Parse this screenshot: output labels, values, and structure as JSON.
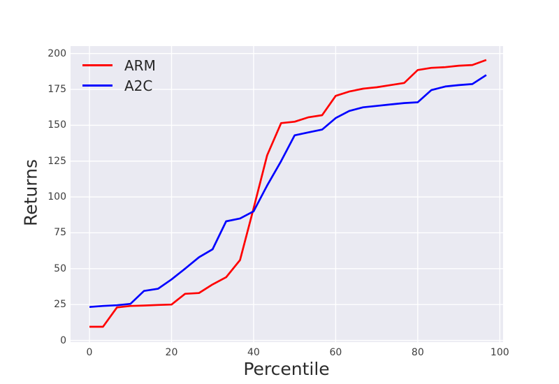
{
  "chart_data": {
    "type": "line",
    "title": "",
    "xlabel": "Percentile",
    "ylabel": "Returns",
    "grid": true,
    "legend_position": "upper left",
    "plot_bg_color": "#eaeaf2",
    "grid_color": "#ffffff",
    "tick_color": "#3d3d3d",
    "xlim": [
      -4.6,
      100.8
    ],
    "ylim": [
      -1.2,
      205.2
    ],
    "x_ticks": [
      0,
      20,
      40,
      60,
      80,
      100
    ],
    "y_ticks": [
      0,
      25,
      50,
      75,
      100,
      125,
      150,
      175,
      200
    ],
    "x": [
      0,
      3.3,
      6.7,
      10,
      13.3,
      16.7,
      20,
      23.3,
      26.7,
      30,
      33.3,
      36.7,
      40,
      43.3,
      46.7,
      50,
      53.3,
      56.7,
      60,
      63.3,
      66.7,
      70,
      73.3,
      76.7,
      80,
      83.3,
      86.7,
      90,
      93.3,
      96.7
    ],
    "series": [
      {
        "name": "ARM",
        "color": "#ff0000",
        "values": [
          9.5,
          9.5,
          23,
          24,
          24.3,
          24.7,
          25,
          32.5,
          33,
          39,
          44,
          56,
          92,
          129,
          151.5,
          152.5,
          155.5,
          157,
          170.5,
          173.5,
          175.5,
          176.5,
          178,
          179.5,
          188.5,
          190,
          190.5,
          191.5,
          192,
          195.5
        ]
      },
      {
        "name": "A2C",
        "color": "#0000ff",
        "values": [
          23.3,
          24,
          24.5,
          25.5,
          34.5,
          36,
          42.5,
          50,
          58,
          63.5,
          83,
          85,
          90,
          108,
          125,
          143,
          145,
          147,
          155,
          160,
          162.5,
          163.5,
          164.5,
          165.5,
          166,
          174.5,
          177,
          178,
          178.7,
          185
        ]
      }
    ]
  }
}
